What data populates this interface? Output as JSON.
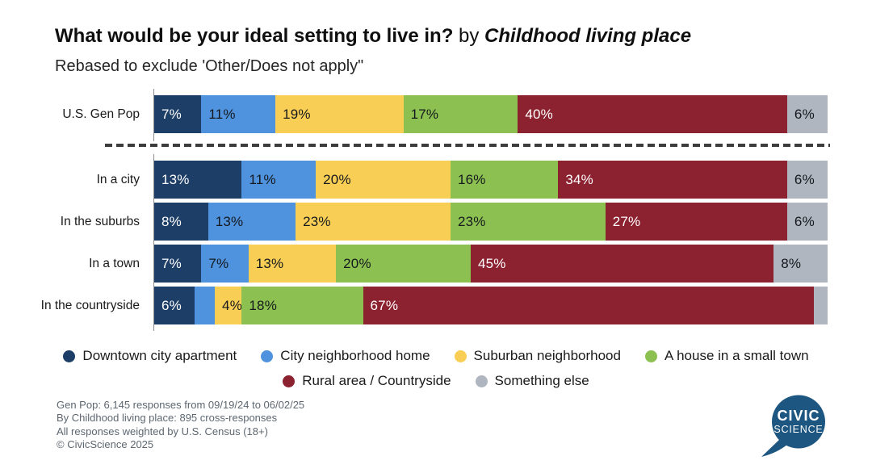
{
  "title": {
    "question": "What would be your ideal setting to live in?",
    "connector": " by ",
    "crosstab": "Childhood living place"
  },
  "subtitle": "Rebased to exclude 'Other/Does not apply\"",
  "chart_data": {
    "type": "bar",
    "variant": "stacked-horizontal",
    "unit": "percent",
    "axis_max": 100,
    "categories": [
      "U.S. Gen Pop",
      "In a city",
      "In the suburbs",
      "In a town",
      "In the countryside"
    ],
    "group_break_after_index": 0,
    "series": [
      {
        "name": "Downtown city apartment",
        "color": "#1d3e66",
        "label_color": "#ffffff",
        "values": [
          7,
          13,
          8,
          7,
          6
        ],
        "labels": [
          "7%",
          "13%",
          "8%",
          "7%",
          "6%"
        ]
      },
      {
        "name": "City neighborhood home",
        "color": "#4f92de",
        "label_color": "#15191d",
        "values": [
          11,
          11,
          13,
          7,
          3
        ],
        "labels": [
          "11%",
          "11%",
          "13%",
          "7%",
          ""
        ]
      },
      {
        "name": "Suburban neighborhood",
        "color": "#f9ce55",
        "label_color": "#15191d",
        "values": [
          19,
          20,
          23,
          13,
          4
        ],
        "labels": [
          "19%",
          "20%",
          "23%",
          "13%",
          "4%"
        ]
      },
      {
        "name": "A house in a small town",
        "color": "#8cc152",
        "label_color": "#15191d",
        "values": [
          17,
          16,
          23,
          20,
          18
        ],
        "labels": [
          "17%",
          "16%",
          "23%",
          "20%",
          "18%"
        ]
      },
      {
        "name": "Rural area / Countryside",
        "color": "#8c2130",
        "label_color": "#ffffff",
        "values": [
          40,
          34,
          27,
          45,
          67
        ],
        "labels": [
          "40%",
          "34%",
          "27%",
          "45%",
          "67%"
        ]
      },
      {
        "name": "Something else",
        "color": "#afb6bf",
        "label_color": "#15191d",
        "values": [
          6,
          6,
          6,
          8,
          2
        ],
        "labels": [
          "6%",
          "6%",
          "6%",
          "8%",
          ""
        ]
      }
    ],
    "legend_rows": [
      [
        0,
        1,
        2,
        3
      ],
      [
        4,
        5
      ]
    ]
  },
  "footer": {
    "lines": [
      "Gen Pop: 6,145 responses from 09/19/24 to 06/02/25",
      "By Childhood living place: 895 cross-responses",
      "All responses weighted by U.S. Census (18+)",
      "© CivicScience 2025"
    ]
  },
  "logo": {
    "line1": "CIVIC",
    "line2": "SCIENCE",
    "color": "#1d5680"
  }
}
